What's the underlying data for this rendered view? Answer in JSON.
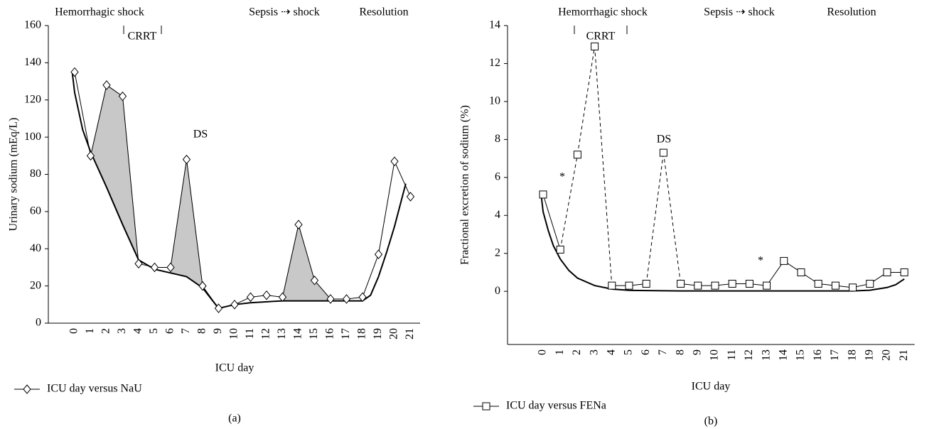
{
  "chart_data": [
    {
      "type": "line",
      "panel_label": "(a)",
      "x_label": "ICU day",
      "y_label": "Urinary sodium (mEq/L)",
      "phases": [
        "Hemorrhagic shock",
        "Sepsis ⇢ shock",
        "Resolution"
      ],
      "annotations": [
        "CRRT",
        "DS"
      ],
      "categories": [
        "0",
        "1",
        "2",
        "3",
        "4",
        "5",
        "6",
        "7",
        "8",
        "9",
        "10",
        "11",
        "12",
        "13",
        "14",
        "15",
        "16",
        "17",
        "18",
        "19",
        "20",
        "21"
      ],
      "series": [
        {
          "name": "ICU day versus NaU",
          "color": "#000000",
          "marker": "diamond",
          "values": [
            135,
            90,
            128,
            122,
            32,
            30,
            30,
            88,
            20,
            8,
            10,
            14,
            15,
            14,
            53,
            23,
            13,
            13,
            14,
            37,
            87,
            68
          ]
        }
      ],
      "trend": {
        "x": [
          -0.15,
          0,
          0.5,
          1,
          2,
          3,
          4,
          5,
          6,
          7,
          8,
          9,
          10,
          11,
          13,
          18,
          18.5,
          19,
          19.5,
          20,
          20.7
        ],
        "values": [
          135,
          124,
          104,
          92,
          73,
          53,
          34,
          29,
          27,
          25,
          19,
          8,
          10,
          11,
          12,
          12,
          15,
          25,
          38,
          52,
          75
        ]
      },
      "shaded": [
        [
          1,
          4
        ],
        [
          6,
          8
        ],
        [
          13,
          16
        ]
      ],
      "ylim": [
        0,
        160
      ],
      "yticks": [
        0,
        20,
        40,
        60,
        80,
        100,
        120,
        140,
        160
      ]
    },
    {
      "type": "line",
      "panel_label": "(b)",
      "x_label": "ICU day",
      "y_label": "Fractional excretion of sodium (%)",
      "phases": [
        "Hemorrhagic shock",
        "Sepsis ⇢ shock",
        "Resolution"
      ],
      "annotations": [
        "CRRT",
        "DS",
        "*",
        "*"
      ],
      "categories": [
        "0",
        "1",
        "2",
        "3",
        "4",
        "5",
        "6",
        "7",
        "8",
        "9",
        "10",
        "11",
        "12",
        "13",
        "14",
        "15",
        "16",
        "17",
        "18",
        "19",
        "20",
        "21"
      ],
      "series": [
        {
          "name": "ICU day versus FENa",
          "color": "#000000",
          "marker": "square",
          "values": [
            5.1,
            2.2,
            7.2,
            12.9,
            0.3,
            0.3,
            0.4,
            7.3,
            0.4,
            0.3,
            0.3,
            0.4,
            0.4,
            0.3,
            1.6,
            1.0,
            0.4,
            0.3,
            0.2,
            0.4,
            1.0,
            1.0
          ],
          "dashed_from": [
            1,
            2,
            3,
            6,
            7
          ]
        }
      ],
      "trend": {
        "x": [
          -0.1,
          0,
          0.3,
          0.6,
          1,
          1.5,
          2,
          3,
          4,
          5,
          8,
          18,
          19,
          20,
          20.5,
          21
        ],
        "values": [
          5,
          4.2,
          3.2,
          2.4,
          1.7,
          1.1,
          0.7,
          0.3,
          0.12,
          0.05,
          0.02,
          0.02,
          0.06,
          0.2,
          0.35,
          0.65
        ]
      },
      "ylim": [
        -2.8,
        14
      ],
      "yticks": [
        0,
        2,
        4,
        6,
        8,
        10,
        12,
        14
      ]
    }
  ]
}
